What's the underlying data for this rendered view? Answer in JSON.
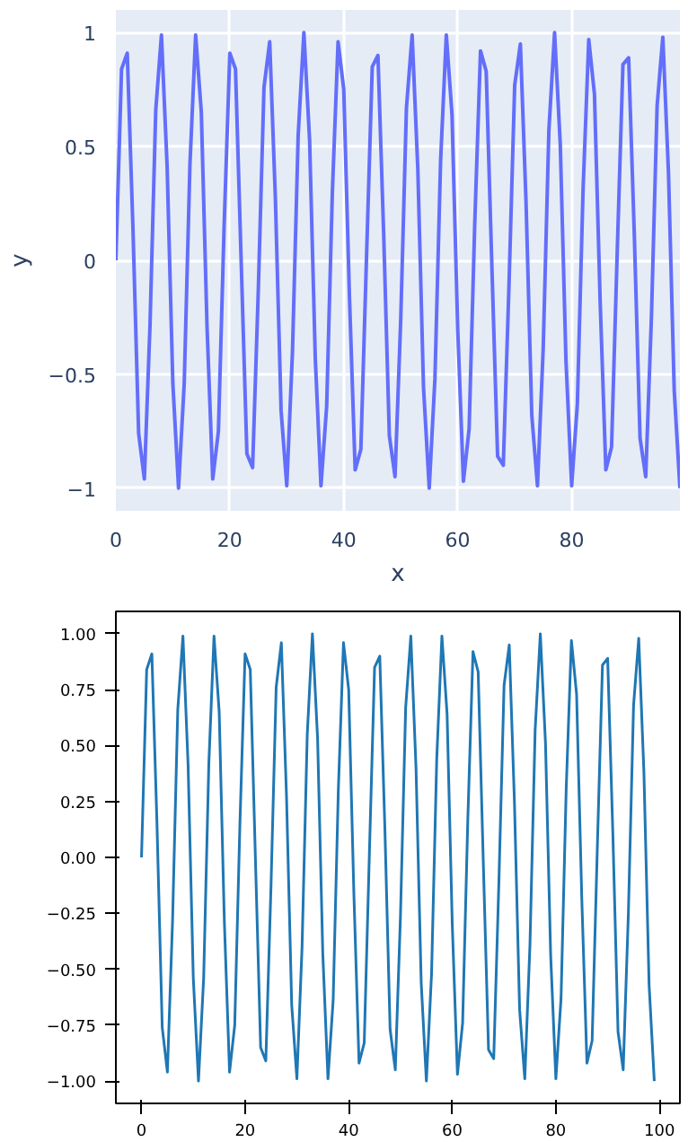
{
  "chart_data": [
    {
      "type": "line",
      "xlabel": "x",
      "ylabel": "y",
      "xlim": [
        0,
        99
      ],
      "ylim": [
        -1.1,
        1.1
      ],
      "xticks": [
        0,
        20,
        40,
        60,
        80
      ],
      "yticks": [
        {
          "value": -1,
          "label": "−1"
        },
        {
          "value": -0.5,
          "label": "−0.5"
        },
        0,
        0.5,
        1
      ],
      "grid": true,
      "marker": "none",
      "line_style": "solid",
      "x": [
        0,
        1,
        2,
        3,
        4,
        5,
        6,
        7,
        8,
        9,
        10,
        11,
        12,
        13,
        14,
        15,
        16,
        17,
        18,
        19,
        20,
        21,
        22,
        23,
        24,
        25,
        26,
        27,
        28,
        29,
        30,
        31,
        32,
        33,
        34,
        35,
        36,
        37,
        38,
        39,
        40,
        41,
        42,
        43,
        44,
        45,
        46,
        47,
        48,
        49,
        50,
        51,
        52,
        53,
        54,
        55,
        56,
        57,
        58,
        59,
        60,
        61,
        62,
        63,
        64,
        65,
        66,
        67,
        68,
        69,
        70,
        71,
        72,
        73,
        74,
        75,
        76,
        77,
        78,
        79,
        80,
        81,
        82,
        83,
        84,
        85,
        86,
        87,
        88,
        89,
        90,
        91,
        92,
        93,
        94,
        95,
        96,
        97,
        98,
        99
      ],
      "series": [
        {
          "color": "#636efa",
          "values": [
            0,
            0.84,
            0.91,
            0.14,
            -0.76,
            -0.96,
            -0.28,
            0.66,
            0.99,
            0.41,
            -0.54,
            -1.0,
            -0.54,
            0.42,
            0.99,
            0.65,
            -0.29,
            -0.96,
            -0.75,
            0.15,
            0.91,
            0.84,
            -0.01,
            -0.85,
            -0.91,
            -0.13,
            0.76,
            0.96,
            0.27,
            -0.66,
            -0.99,
            -0.4,
            0.55,
            1.0,
            0.53,
            -0.43,
            -0.99,
            -0.64,
            0.3,
            0.96,
            0.75,
            -0.16,
            -0.92,
            -0.83,
            0.02,
            0.85,
            0.9,
            0.12,
            -0.77,
            -0.95,
            -0.26,
            0.67,
            0.99,
            0.4,
            -0.56,
            -1.0,
            -0.52,
            0.44,
            0.99,
            0.64,
            -0.3,
            -0.97,
            -0.74,
            0.17,
            0.92,
            0.83,
            -0.03,
            -0.86,
            -0.9,
            -0.11,
            0.77,
            0.95,
            0.25,
            -0.68,
            -0.99,
            -0.39,
            0.57,
            1.0,
            0.51,
            -0.44,
            -0.99,
            -0.63,
            0.31,
            0.97,
            0.73,
            -0.18,
            -0.92,
            -0.82,
            0.04,
            0.86,
            0.89,
            0.11,
            -0.78,
            -0.95,
            -0.25,
            0.68,
            0.98,
            0.38,
            -0.57,
            -1.0
          ]
        }
      ]
    },
    {
      "type": "line",
      "xlim": [
        -4.95,
        103.95
      ],
      "ylim": [
        -1.1,
        1.1
      ],
      "xticks": [
        0,
        20,
        40,
        60,
        80,
        100
      ],
      "yticks": [
        {
          "value": -1,
          "label": "−1.00"
        },
        {
          "value": -0.75,
          "label": "−0.75"
        },
        {
          "value": -0.5,
          "label": "−0.50"
        },
        {
          "value": -0.25,
          "label": "−0.25"
        },
        {
          "value": 0,
          "label": "0.00"
        },
        {
          "value": 0.25,
          "label": "0.25"
        },
        {
          "value": 0.5,
          "label": "0.50"
        },
        {
          "value": 0.75,
          "label": "0.75"
        },
        {
          "value": 1,
          "label": "1.00"
        }
      ],
      "grid": false,
      "marker": "none",
      "line_style": "solid",
      "x": [
        0,
        1,
        2,
        3,
        4,
        5,
        6,
        7,
        8,
        9,
        10,
        11,
        12,
        13,
        14,
        15,
        16,
        17,
        18,
        19,
        20,
        21,
        22,
        23,
        24,
        25,
        26,
        27,
        28,
        29,
        30,
        31,
        32,
        33,
        34,
        35,
        36,
        37,
        38,
        39,
        40,
        41,
        42,
        43,
        44,
        45,
        46,
        47,
        48,
        49,
        50,
        51,
        52,
        53,
        54,
        55,
        56,
        57,
        58,
        59,
        60,
        61,
        62,
        63,
        64,
        65,
        66,
        67,
        68,
        69,
        70,
        71,
        72,
        73,
        74,
        75,
        76,
        77,
        78,
        79,
        80,
        81,
        82,
        83,
        84,
        85,
        86,
        87,
        88,
        89,
        90,
        91,
        92,
        93,
        94,
        95,
        96,
        97,
        98,
        99
      ],
      "series": [
        {
          "color": "#1f77b4",
          "values": [
            0,
            0.84,
            0.91,
            0.14,
            -0.76,
            -0.96,
            -0.28,
            0.66,
            0.99,
            0.41,
            -0.54,
            -1.0,
            -0.54,
            0.42,
            0.99,
            0.65,
            -0.29,
            -0.96,
            -0.75,
            0.15,
            0.91,
            0.84,
            -0.01,
            -0.85,
            -0.91,
            -0.13,
            0.76,
            0.96,
            0.27,
            -0.66,
            -0.99,
            -0.4,
            0.55,
            1.0,
            0.53,
            -0.43,
            -0.99,
            -0.64,
            0.3,
            0.96,
            0.75,
            -0.16,
            -0.92,
            -0.83,
            0.02,
            0.85,
            0.9,
            0.12,
            -0.77,
            -0.95,
            -0.26,
            0.67,
            0.99,
            0.4,
            -0.56,
            -1.0,
            -0.52,
            0.44,
            0.99,
            0.64,
            -0.3,
            -0.97,
            -0.74,
            0.17,
            0.92,
            0.83,
            -0.03,
            -0.86,
            -0.9,
            -0.11,
            0.77,
            0.95,
            0.25,
            -0.68,
            -0.99,
            -0.39,
            0.57,
            1.0,
            0.51,
            -0.44,
            -0.99,
            -0.63,
            0.31,
            0.97,
            0.73,
            -0.18,
            -0.92,
            -0.82,
            0.04,
            0.86,
            0.89,
            0.11,
            -0.78,
            -0.95,
            -0.25,
            0.68,
            0.98,
            0.38,
            -0.57,
            -1.0
          ]
        }
      ]
    }
  ]
}
